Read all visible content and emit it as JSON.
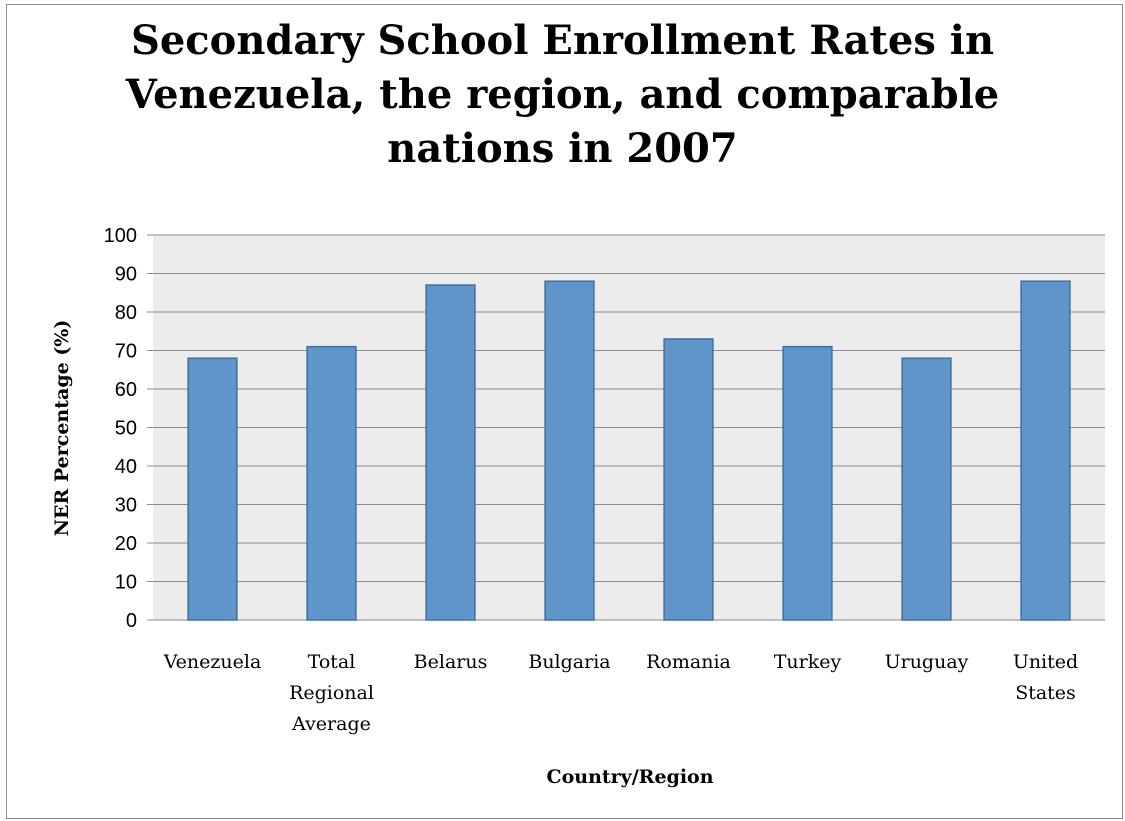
{
  "chart_data": {
    "type": "bar",
    "title": "Secondary School Enrollment Rates in Venezuela, the region, and comparable nations in 2007",
    "title_lines": [
      "Secondary School Enrollment Rates in",
      "Venezuela, the region, and comparable",
      "nations in 2007"
    ],
    "xlabel": "Country/Region",
    "ylabel": "NER Percentage (%)",
    "categories": [
      "Venezuela",
      "Total Regional Average",
      "Belarus",
      "Bulgaria",
      "Romania",
      "Turkey",
      "Uruguay",
      "United States"
    ],
    "category_label_lines": [
      [
        "Venezuela"
      ],
      [
        "Total",
        "Regional",
        "Average"
      ],
      [
        "Belarus"
      ],
      [
        "Bulgaria"
      ],
      [
        "Romania"
      ],
      [
        "Turkey"
      ],
      [
        "Uruguay"
      ],
      [
        "United",
        "States"
      ]
    ],
    "values": [
      68,
      71,
      87,
      88,
      73,
      71,
      68,
      88
    ],
    "ylim": [
      0,
      100
    ],
    "yticks": [
      0,
      10,
      20,
      30,
      40,
      50,
      60,
      70,
      80,
      90,
      100
    ],
    "grid": true,
    "legend": "none",
    "colors": {
      "bar_fill": "#5f95c9",
      "bar_stroke": "#41709f",
      "plot_background": "#ececec",
      "gridline": "#8c8c8c"
    }
  }
}
